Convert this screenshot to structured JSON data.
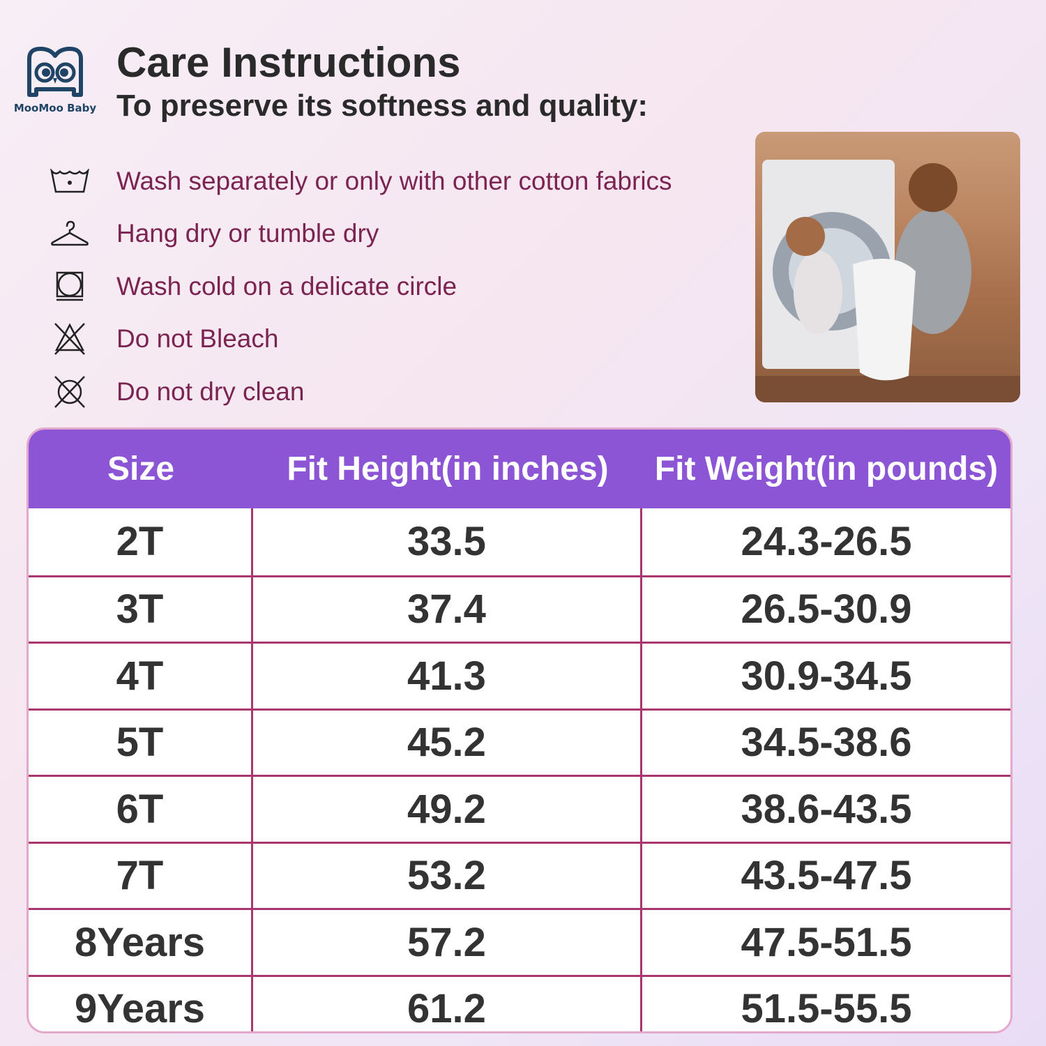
{
  "brand": {
    "name": "MooMoo Baby"
  },
  "header": {
    "title": "Care Instructions",
    "subtitle": "To preserve its softness and quality:"
  },
  "care": [
    {
      "icon": "wash-tub-icon",
      "text": "Wash separately or only with other cotton fabrics"
    },
    {
      "icon": "hanger-icon",
      "text": "Hang dry or tumble dry"
    },
    {
      "icon": "tumble-dry-icon",
      "text": "Wash cold on a delicate circle"
    },
    {
      "icon": "no-bleach-icon",
      "text": "Do not Bleach"
    },
    {
      "icon": "no-dry-clean-icon",
      "text": "Do not dry clean"
    }
  ],
  "colors": {
    "header_bg": "#8b55d6",
    "border": "#a8376f",
    "care_text": "#7b2452",
    "logo": "#1f4466"
  },
  "table": {
    "headers": [
      "Size",
      "Fit Height(in inches)",
      "Fit Weight(in pounds)"
    ],
    "rows": [
      [
        "2T",
        "33.5",
        "24.3-26.5"
      ],
      [
        "3T",
        "37.4",
        "26.5-30.9"
      ],
      [
        "4T",
        "41.3",
        "30.9-34.5"
      ],
      [
        "5T",
        "45.2",
        "34.5-38.6"
      ],
      [
        "6T",
        "49.2",
        "38.6-43.5"
      ],
      [
        "7T",
        "53.2",
        "43.5-47.5"
      ],
      [
        "8Years",
        "57.2",
        "47.5-51.5"
      ],
      [
        "9Years",
        "61.2",
        "51.5-55.5"
      ]
    ]
  }
}
